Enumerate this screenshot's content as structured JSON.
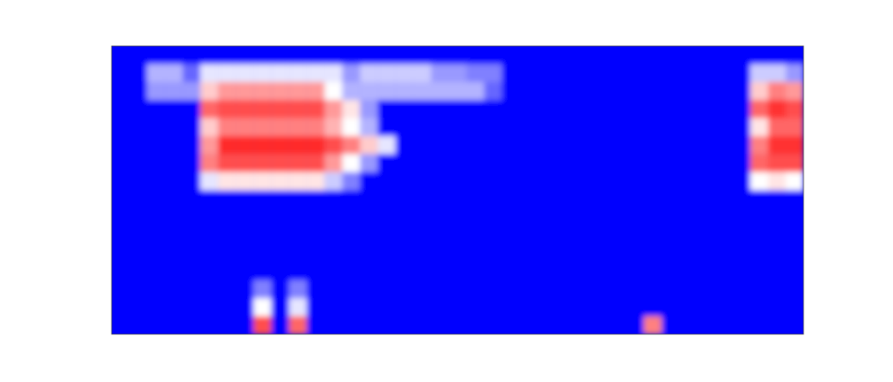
{
  "chart_data": {
    "type": "heatmap",
    "tick_labels": false,
    "color_range": [
      0,
      1
    ],
    "cells": [
      [
        0,
        0,
        0,
        0,
        0,
        0,
        0,
        0,
        0,
        0,
        0,
        0,
        0,
        0,
        0,
        0,
        0,
        0,
        0,
        0,
        0,
        0,
        0,
        0,
        0,
        0,
        0,
        0,
        0,
        0,
        0,
        0,
        0,
        0,
        0,
        0,
        0,
        0,
        0
      ],
      [
        0,
        0,
        0.35,
        0.35,
        0.2,
        0.45,
        0.45,
        0.45,
        0.45,
        0.45,
        0.45,
        0.45,
        0.45,
        0.3,
        0.4,
        0.4,
        0.4,
        0.4,
        0.3,
        0.3,
        0.25,
        0.25,
        0,
        0,
        0,
        0,
        0,
        0,
        0,
        0,
        0,
        0,
        0,
        0,
        0,
        0,
        0.4,
        0.4,
        0.3
      ],
      [
        0,
        0,
        0.3,
        0.3,
        0.3,
        0.6,
        0.7,
        0.7,
        0.7,
        0.7,
        0.7,
        0.7,
        0.5,
        0.35,
        0.35,
        0.35,
        0.35,
        0.35,
        0.35,
        0.35,
        0.35,
        0.2,
        0,
        0,
        0,
        0,
        0,
        0,
        0,
        0,
        0,
        0,
        0,
        0,
        0,
        0,
        0.6,
        0.75,
        0.7
      ],
      [
        0,
        0,
        0,
        0,
        0,
        0.8,
        0.85,
        0.85,
        0.85,
        0.85,
        0.85,
        0.85,
        0.7,
        0.55,
        0.3,
        0,
        0,
        0,
        0,
        0,
        0,
        0,
        0,
        0,
        0,
        0,
        0,
        0,
        0,
        0,
        0,
        0,
        0,
        0,
        0,
        0,
        0.8,
        0.9,
        0.85
      ],
      [
        0,
        0,
        0,
        0,
        0,
        0.6,
        0.75,
        0.75,
        0.75,
        0.75,
        0.75,
        0.75,
        0.65,
        0.5,
        0.35,
        0,
        0,
        0,
        0,
        0,
        0,
        0,
        0,
        0,
        0,
        0,
        0,
        0,
        0,
        0,
        0,
        0,
        0,
        0,
        0,
        0,
        0.55,
        0.8,
        0.8
      ],
      [
        0,
        0,
        0,
        0,
        0,
        0.7,
        0.92,
        0.92,
        0.92,
        0.92,
        0.92,
        0.92,
        0.85,
        0.75,
        0.6,
        0.45,
        0,
        0,
        0,
        0,
        0,
        0,
        0,
        0,
        0,
        0,
        0,
        0,
        0,
        0,
        0,
        0,
        0,
        0,
        0,
        0,
        0.75,
        0.9,
        0.9
      ],
      [
        0,
        0,
        0,
        0,
        0,
        0.75,
        0.85,
        0.85,
        0.85,
        0.85,
        0.85,
        0.85,
        0.7,
        0.5,
        0.3,
        0,
        0,
        0,
        0,
        0,
        0,
        0,
        0,
        0,
        0,
        0,
        0,
        0,
        0,
        0,
        0,
        0,
        0,
        0,
        0,
        0,
        0.8,
        0.85,
        0.85
      ],
      [
        0,
        0,
        0,
        0,
        0,
        0.45,
        0.55,
        0.55,
        0.55,
        0.55,
        0.55,
        0.55,
        0.4,
        0.25,
        0,
        0,
        0,
        0,
        0,
        0,
        0,
        0,
        0,
        0,
        0,
        0,
        0,
        0,
        0,
        0,
        0,
        0,
        0,
        0,
        0,
        0,
        0.5,
        0.55,
        0.5
      ],
      [
        0,
        0,
        0,
        0,
        0,
        0,
        0,
        0,
        0,
        0,
        0,
        0,
        0,
        0,
        0,
        0,
        0,
        0,
        0,
        0,
        0,
        0,
        0,
        0,
        0,
        0,
        0,
        0,
        0,
        0,
        0,
        0,
        0,
        0,
        0,
        0,
        0,
        0,
        0
      ],
      [
        0,
        0,
        0,
        0,
        0,
        0,
        0,
        0,
        0,
        0,
        0,
        0,
        0,
        0,
        0,
        0,
        0,
        0,
        0,
        0,
        0,
        0,
        0,
        0,
        0,
        0,
        0,
        0,
        0,
        0,
        0,
        0,
        0,
        0,
        0,
        0,
        0,
        0,
        0
      ],
      [
        0,
        0,
        0,
        0,
        0,
        0,
        0,
        0,
        0,
        0,
        0,
        0,
        0,
        0,
        0,
        0,
        0,
        0,
        0,
        0,
        0,
        0,
        0,
        0,
        0,
        0,
        0,
        0,
        0,
        0,
        0,
        0,
        0,
        0,
        0,
        0,
        0,
        0,
        0
      ],
      [
        0,
        0,
        0,
        0,
        0,
        0,
        0,
        0,
        0,
        0,
        0,
        0,
        0,
        0,
        0,
        0,
        0,
        0,
        0,
        0,
        0,
        0,
        0,
        0,
        0,
        0,
        0,
        0,
        0,
        0,
        0,
        0,
        0,
        0,
        0,
        0,
        0,
        0,
        0
      ],
      [
        0,
        0,
        0,
        0,
        0,
        0,
        0,
        0,
        0,
        0,
        0,
        0,
        0,
        0,
        0,
        0,
        0,
        0,
        0,
        0,
        0,
        0,
        0,
        0,
        0,
        0,
        0,
        0,
        0,
        0,
        0,
        0,
        0,
        0,
        0,
        0,
        0,
        0,
        0
      ],
      [
        0,
        0,
        0,
        0,
        0,
        0,
        0,
        0,
        0.25,
        0,
        0.25,
        0,
        0,
        0,
        0,
        0,
        0,
        0,
        0,
        0,
        0,
        0,
        0,
        0,
        0,
        0,
        0,
        0,
        0,
        0,
        0,
        0,
        0,
        0,
        0,
        0,
        0,
        0,
        0
      ],
      [
        0,
        0,
        0,
        0,
        0,
        0,
        0,
        0,
        0.5,
        0,
        0.45,
        0,
        0,
        0,
        0,
        0,
        0,
        0,
        0,
        0,
        0,
        0,
        0,
        0,
        0,
        0,
        0,
        0,
        0,
        0,
        0,
        0,
        0,
        0,
        0,
        0,
        0,
        0,
        0
      ],
      [
        0,
        0,
        0,
        0,
        0,
        0,
        0,
        0,
        0.85,
        0,
        0.8,
        0,
        0,
        0,
        0,
        0,
        0,
        0,
        0,
        0,
        0,
        0,
        0,
        0,
        0,
        0,
        0,
        0,
        0,
        0,
        0.75,
        0,
        0,
        0,
        0,
        0,
        0,
        0,
        0
      ]
    ]
  }
}
